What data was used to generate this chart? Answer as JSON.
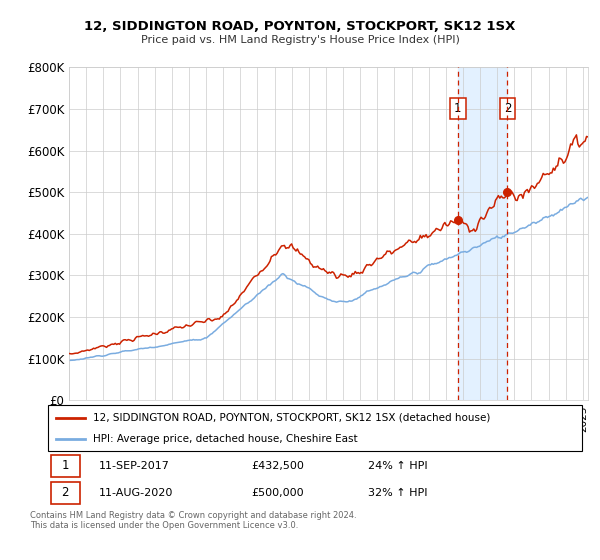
{
  "title": "12, SIDDINGTON ROAD, POYNTON, STOCKPORT, SK12 1SX",
  "subtitle": "Price paid vs. HM Land Registry's House Price Index (HPI)",
  "legend_line1": "12, SIDDINGTON ROAD, POYNTON, STOCKPORT, SK12 1SX (detached house)",
  "legend_line2": "HPI: Average price, detached house, Cheshire East",
  "annotation1_date": "11-SEP-2017",
  "annotation1_price": "£432,500",
  "annotation1_hpi": "24% ↑ HPI",
  "annotation2_date": "11-AUG-2020",
  "annotation2_price": "£500,000",
  "annotation2_hpi": "32% ↑ HPI",
  "footer": "Contains HM Land Registry data © Crown copyright and database right 2024.\nThis data is licensed under the Open Government Licence v3.0.",
  "red_color": "#cc2200",
  "blue_color": "#7aace0",
  "shaded_color": "#ddeeff",
  "ylim": [
    0,
    800000
  ],
  "yticks": [
    0,
    100000,
    200000,
    300000,
    400000,
    500000,
    600000,
    700000,
    800000
  ],
  "sale1_x": 2017.69,
  "sale1_y": 432500,
  "sale2_x": 2020.6,
  "sale2_y": 500000,
  "xlim_start": 1995,
  "xlim_end": 2025.3
}
